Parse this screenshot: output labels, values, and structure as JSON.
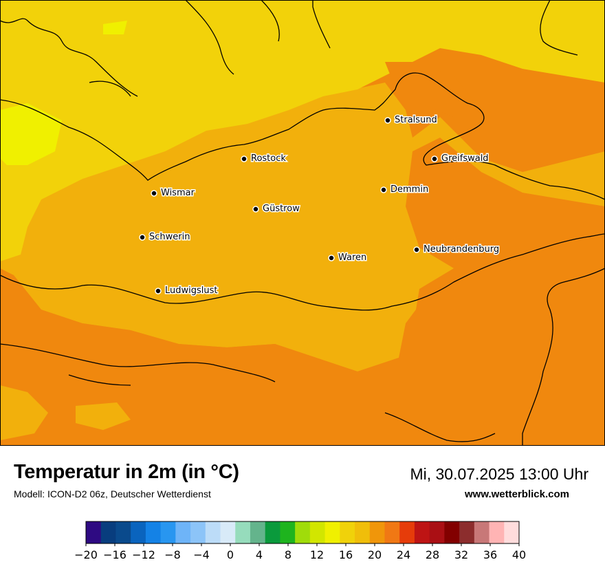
{
  "map": {
    "title": "Temperatur in 2m (in °C)",
    "model": "Modell: ICON-D2 06z, Deutscher Wetterdienst",
    "datetime": "Mi, 30.07.2025 13:00 Uhr",
    "website": "www.wetterblick.com",
    "cities": [
      {
        "name": "Stralsund"
      },
      {
        "name": "Rostock"
      },
      {
        "name": "Greifswald"
      },
      {
        "name": "Wismar"
      },
      {
        "name": "Demmin"
      },
      {
        "name": "Güstrow"
      },
      {
        "name": "Schwerin"
      },
      {
        "name": "Waren"
      },
      {
        "name": "Neubrandenburg"
      },
      {
        "name": "Ludwigslust"
      }
    ]
  },
  "legend": {
    "ticks": [
      "−20",
      "−16",
      "−12",
      "−8",
      "−4",
      "0",
      "4",
      "8",
      "12",
      "16",
      "20",
      "24",
      "28",
      "32",
      "36",
      "40"
    ],
    "colors": [
      "#2e0a82",
      "#083d7e",
      "#0a4a8c",
      "#0a64be",
      "#1482e6",
      "#2896f0",
      "#6eb4f8",
      "#8cc4f8",
      "#bcdcf8",
      "#d8eaf8",
      "#96dcbc",
      "#64b48c",
      "#0a9a3c",
      "#1eb41e",
      "#a0dc0a",
      "#d2e600",
      "#f0f000",
      "#f0d20a",
      "#f0be0a",
      "#f0960a",
      "#f07814",
      "#e63c0a",
      "#be1414",
      "#aa0f14",
      "#820000",
      "#8c2d2d",
      "#c87878",
      "#ffb4b4",
      "#ffdcdc"
    ]
  }
}
